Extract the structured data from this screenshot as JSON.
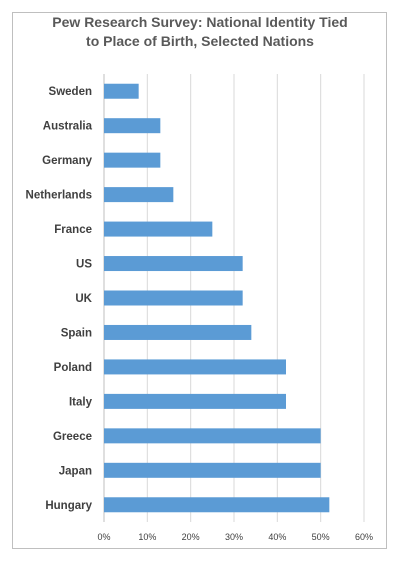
{
  "chart_data": {
    "type": "bar",
    "orientation": "horizontal",
    "title_lines": [
      "Pew Research Survey: National Identity Tied",
      "to Place of Birth, Selected Nations"
    ],
    "categories": [
      "Sweden",
      "Australia",
      "Germany",
      "Netherlands",
      "France",
      "US",
      "UK",
      "Spain",
      "Poland",
      "Italy",
      "Greece",
      "Japan",
      "Hungary"
    ],
    "values": [
      8,
      13,
      13,
      16,
      25,
      32,
      32,
      34,
      42,
      42,
      50,
      50,
      52
    ],
    "xlim": [
      0,
      60
    ],
    "xticks": [
      "0%",
      "10%",
      "20%",
      "30%",
      "40%",
      "50%",
      "60%"
    ],
    "xlabel": "",
    "ylabel": "",
    "grid": "vertical",
    "legend": "none",
    "bar_color": "#5b9bd5",
    "grid_color": "#d9d9d9"
  }
}
